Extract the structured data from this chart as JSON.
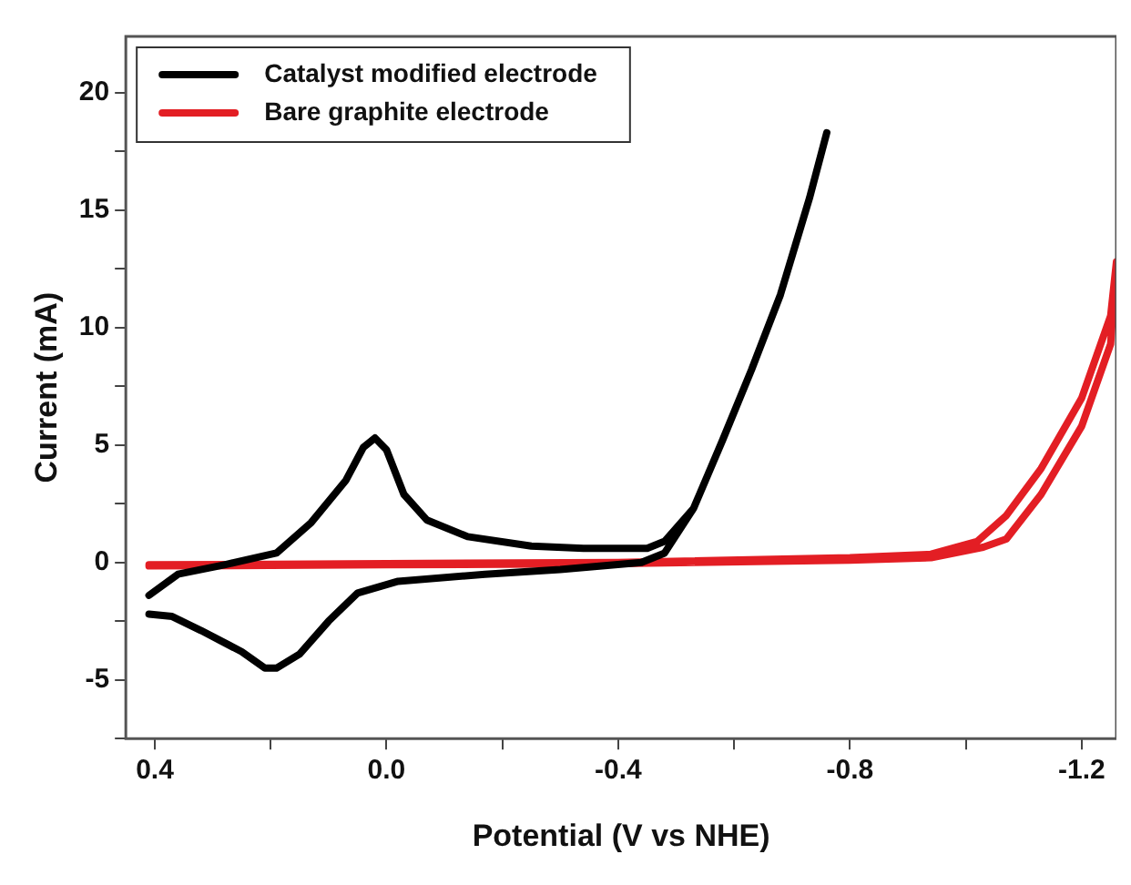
{
  "chart_data": {
    "type": "line",
    "xlabel": "Potential (V vs NHE)",
    "ylabel": "Current (mA)",
    "xlim": [
      0.45,
      -1.26
    ],
    "xticks": [
      0.4,
      {
        "value": 0.2,
        "label": null
      },
      {
        "value": 0,
        "label": "0.0"
      },
      {
        "value": -0.2,
        "label": null
      },
      -0.4,
      {
        "value": -0.6,
        "label": null
      },
      -0.8,
      {
        "value": -1.0,
        "label": null
      },
      -1.2
    ],
    "ylim": [
      -7.5,
      22.4
    ],
    "yticks": [
      {
        "value": -7.5,
        "label": null
      },
      -5,
      {
        "value": -2.5,
        "label": null
      },
      0,
      {
        "value": 2.5,
        "label": null
      },
      5,
      {
        "value": 7.5,
        "label": null
      },
      10,
      {
        "value": 12.5,
        "label": null
      },
      15,
      {
        "value": 17.5,
        "label": null
      },
      20
    ],
    "grid": false,
    "legend": "top left",
    "marker": "none",
    "line_style": "solid",
    "series": [
      {
        "name": "Catalyst modified electrode",
        "color": "#000000",
        "x": [
          0.41,
          0.36,
          0.28,
          0.19,
          0.13,
          0.07,
          0.04,
          0.02,
          0.0,
          -0.03,
          -0.07,
          -0.14,
          -0.25,
          -0.34,
          -0.45,
          -0.48,
          -0.53,
          -0.58,
          -0.63,
          -0.68,
          -0.73,
          -0.76,
          -0.73,
          -0.68,
          -0.63,
          -0.58,
          -0.53,
          -0.48,
          -0.44,
          -0.3,
          -0.17,
          -0.02,
          0.05,
          0.1,
          0.15,
          0.19,
          0.21,
          0.25,
          0.32,
          0.37,
          0.41
        ],
        "values": [
          -1.4,
          -0.5,
          -0.1,
          0.4,
          1.7,
          3.5,
          4.9,
          5.3,
          4.8,
          2.9,
          1.8,
          1.1,
          0.7,
          0.6,
          0.6,
          0.9,
          2.3,
          5.2,
          8.2,
          11.4,
          15.5,
          18.3,
          15.5,
          11.4,
          8.2,
          5.2,
          2.3,
          0.4,
          0.0,
          -0.3,
          -0.5,
          -0.8,
          -1.3,
          -2.5,
          -3.9,
          -4.5,
          -4.5,
          -3.8,
          -2.9,
          -2.3,
          -2.2
        ]
      },
      {
        "name": "Bare graphite electrode",
        "color": "#e31e24",
        "x": [
          0.41,
          0.0,
          -0.4,
          -0.8,
          -0.94,
          -1.02,
          -1.07,
          -1.13,
          -1.2,
          -1.25,
          -1.26,
          -1.25,
          -1.2,
          -1.13,
          -1.07,
          -1.03,
          -0.94,
          -0.8,
          -0.4,
          0.0,
          0.41
        ],
        "values": [
          -0.1,
          -0.05,
          0.0,
          0.2,
          0.35,
          0.9,
          2.0,
          4.0,
          7.0,
          10.5,
          12.8,
          9.3,
          5.8,
          2.9,
          1.0,
          0.65,
          0.2,
          0.1,
          -0.05,
          -0.1,
          -0.15
        ]
      }
    ]
  }
}
